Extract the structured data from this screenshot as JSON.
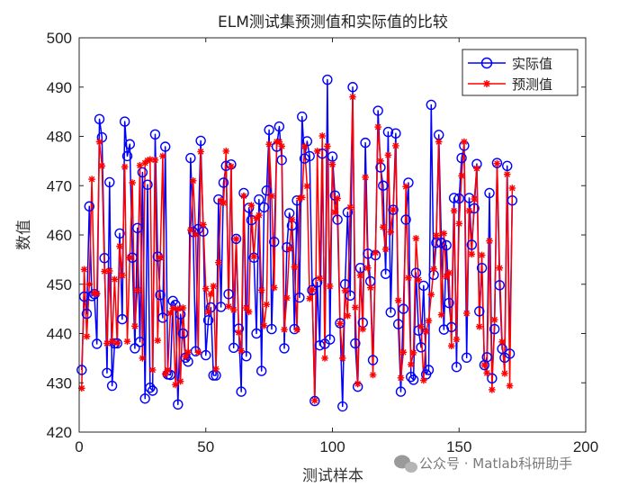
{
  "chart_data": {
    "type": "line",
    "title": "ELM测试集预测值和实际值的比较",
    "xlabel": "测试样本",
    "ylabel": "数值",
    "xlim": [
      0,
      200
    ],
    "ylim": [
      420,
      500
    ],
    "xticks": [
      "0",
      "50",
      "100",
      "150",
      "200"
    ],
    "yticks": [
      "420",
      "430",
      "440",
      "450",
      "460",
      "470",
      "480",
      "490",
      "500"
    ],
    "legend_position": "top-right",
    "grid": false,
    "series": [
      {
        "name": "实际值",
        "color": "#0000ff",
        "marker": "circle",
        "values": [
          432.6,
          447.5,
          444.0,
          465.8,
          447.6,
          448.0,
          437.9,
          483.5,
          479.8,
          455.3,
          432.0,
          470.7,
          429.4,
          438.0,
          438.0,
          460.3,
          442.9,
          483.0,
          476.0,
          478.4,
          455.4,
          437.0,
          461.4,
          438.3,
          472.7,
          426.8,
          470.2,
          429.0,
          428.4,
          480.4,
          455.6,
          447.8,
          443.2,
          477.9,
          431.7,
          431.6,
          446.6,
          445.8,
          425.6,
          443.9,
          440.0,
          435.1,
          434.3,
          475.6,
          460.6,
          436.4,
          461.2,
          479.1,
          460.7,
          435.6,
          442.7,
          445.3,
          431.5,
          431.5,
          467.2,
          445.4,
          470.6,
          474.0,
          448.0,
          474.3,
          437.1,
          459.2,
          441.0,
          428.2,
          468.5,
          435.4,
          465.5,
          463.0,
          455.4,
          440.0,
          467.2,
          432.4,
          465.6,
          469.0,
          481.3,
          440.9,
          458.6,
          477.9,
          482.0,
          475.2,
          437.0,
          457.5,
          464.4,
          461.9,
          440.9,
          467.0,
          447.3,
          484.0,
          475.5,
          479.0,
          476.0,
          448.8,
          426.3,
          450.4,
          437.6,
          476.5,
          437.9,
          491.5,
          438.8,
          475.9,
          468.0,
          463.1,
          442.1,
          425.2,
          450.0,
          464.6,
          447.7,
          490.0,
          438.0,
          429.2,
          453.3,
          442.2,
          478.7,
          456.2,
          450.6,
          434.6,
          455.9,
          485.2,
          473.7,
          470.0,
          452.1,
          480.9,
          444.3,
          465.1,
          480.6,
          441.9,
          428.2,
          445.0,
          463.1,
          470.6,
          431.2,
          430.6,
          452.3,
          440.6,
          437.2,
          449.7,
          431.7,
          432.6,
          486.4,
          451.9,
          458.4,
          480.3,
          458.4,
          440.8,
          457.9,
          446.2,
          441.3,
          467.5,
          433.2,
          467.4,
          475.6,
          478.1,
          435.1,
          467.5,
          458.0,
          465.4,
          474.4,
          444.5,
          453.3,
          433.6,
          435.2,
          468.5,
          430.9,
          440.9,
          474.6,
          449.8,
          436.9,
          435.1,
          474.0,
          435.9,
          467.0
        ]
      },
      {
        "name": "预测值",
        "color": "#ff0000",
        "marker": "asterisk",
        "values": [
          428.9,
          453.0,
          439.4,
          450.0,
          471.3,
          448.2,
          448.1,
          478.9,
          474.0,
          452.6,
          438.0,
          452.7,
          438.4,
          451.0,
          438.1,
          457.7,
          451.8,
          473.8,
          438.4,
          455.4,
          470.6,
          441.5,
          448.8,
          474.1,
          435.0,
          474.6,
          475.1,
          475.3,
          432.6,
          475.2,
          438.6,
          455.4,
          476.0,
          431.8,
          432.6,
          444.1,
          445.1,
          429.6,
          445.0,
          430.3,
          445.2,
          435.3,
          436.2,
          461.0,
          471.0,
          460.1,
          436.2,
          476.9,
          462.1,
          449.1,
          444.4,
          448.0,
          449.6,
          432.8,
          454.4,
          467.0,
          466.5,
          477.0,
          445.5,
          473.9,
          444.8,
          459.2,
          440.2,
          436.5,
          467.9,
          445.2,
          444.4,
          466.0,
          455.6,
          463.4,
          464.0,
          448.8,
          441.6,
          445.9,
          478.4,
          467.9,
          449.3,
          478.9,
          478.9,
          478.0,
          440.8,
          447.2,
          457.2,
          463.1,
          453.5,
          440.8,
          467.4,
          467.6,
          478.0,
          469.9,
          447.1,
          448.9,
          426.4,
          477.0,
          451.2,
          480.1,
          435.0,
          478.0,
          449.6,
          474.3,
          464.6,
          467.4,
          442.0,
          435.0,
          448.7,
          443.6,
          465.6,
          488.0,
          445.3,
          429.8,
          451.8,
          440.9,
          471.7,
          453.3,
          449.3,
          431.6,
          456.4,
          481.9,
          475.0,
          461.6,
          457.1,
          476.2,
          460.6,
          465.1,
          478.1,
          446.7,
          431.0,
          436.2,
          469.8,
          451.3,
          433.7,
          436.1,
          459.3,
          450.9,
          441.4,
          430.5,
          440.4,
          442.6,
          447.9,
          453.1,
          459.9,
          478.9,
          443.8,
          460.3,
          451.6,
          452.3,
          437.5,
          464.9,
          438.8,
          462.3,
          472.0,
          478.9,
          444.1,
          464.9,
          456.1,
          467.3,
          473.5,
          441.4,
          455.9,
          433.6,
          432.0,
          458.8,
          428.6,
          442.8,
          474.5,
          453.3,
          438.3,
          431.9,
          472.3,
          429.4,
          469.5
        ]
      }
    ],
    "watermark": "公众号 · Matlab科研助手"
  }
}
